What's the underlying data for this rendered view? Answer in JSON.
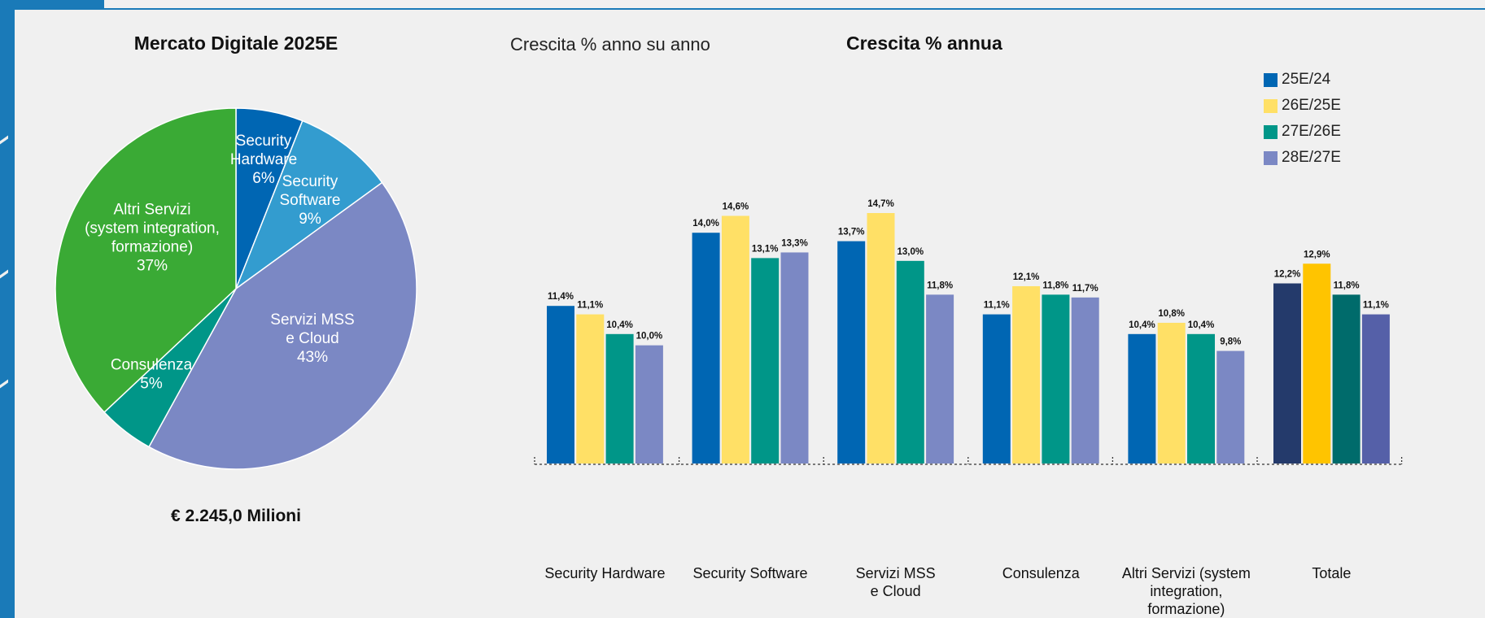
{
  "pie_title": "Mercato Digitale 2025E",
  "pie_total": "€  2.245,0 Milioni",
  "bar_subtitle": "Crescita % anno su anno",
  "bar_title": "Crescita % annua",
  "colors": {
    "frame": "#1a7ab8",
    "pie": [
      "#0066b3",
      "#339ccf",
      "#7b88c4",
      "#009688",
      "#3aaa35"
    ]
  },
  "chart_data": [
    {
      "type": "pie",
      "title": "Mercato Digitale 2025E",
      "total": "€  2.245,0 Milioni",
      "slices": [
        {
          "label": [
            "Security",
            "Hardware",
            "6%"
          ],
          "value": 6,
          "color": "#0066b3"
        },
        {
          "label": [
            "Security",
            "Software",
            "9%"
          ],
          "value": 9,
          "color": "#339ccf"
        },
        {
          "label": [
            "Servizi MSS",
            "e Cloud",
            "43%"
          ],
          "value": 43,
          "color": "#7b88c4"
        },
        {
          "label": [
            "Consulenza",
            "5%"
          ],
          "value": 5,
          "color": "#009688"
        },
        {
          "label": [
            "Altri Servizi",
            "(system integration,",
            "formazione)",
            "37%"
          ],
          "value": 37,
          "color": "#3aaa35"
        }
      ]
    },
    {
      "type": "bar",
      "title": "Crescita % annua",
      "subtitle": "Crescita % anno su anno",
      "categories": [
        [
          "Security Hardware"
        ],
        [
          "Security Software"
        ],
        [
          "Servizi MSS",
          "e Cloud"
        ],
        [
          "Consulenza"
        ],
        [
          "Altri Servizi (system",
          "integration, formazione)"
        ],
        [
          "Totale"
        ]
      ],
      "series": [
        {
          "name": "25E/24",
          "color": "#0066b3",
          "values": [
            11.4,
            14.0,
            13.7,
            11.1,
            10.4,
            12.2
          ],
          "labels": [
            "11,4%",
            "14,0%",
            "13,7%",
            "11,1%",
            "10,4%",
            "12,2%"
          ]
        },
        {
          "name": "26E/25E",
          "color": "#ffe066",
          "values": [
            11.1,
            14.6,
            14.7,
            12.1,
            10.8,
            12.9
          ],
          "labels": [
            "11,1%",
            "14,6%",
            "14,7%",
            "12,1%",
            "10,8%",
            "12,9%"
          ]
        },
        {
          "name": "27E/26E",
          "color": "#009688",
          "values": [
            10.4,
            13.1,
            13.0,
            11.8,
            10.4,
            11.8
          ],
          "labels": [
            "10,4%",
            "13,1%",
            "13,0%",
            "11,8%",
            "10,4%",
            "11,8%"
          ]
        },
        {
          "name": "28E/27E",
          "color": "#7b88c4",
          "values": [
            10.0,
            13.3,
            11.8,
            11.7,
            9.8,
            11.1
          ],
          "labels": [
            "10,0%",
            "13,3%",
            "11,8%",
            "11,7%",
            "9,8%",
            "11,1%"
          ]
        }
      ],
      "total_colors": [
        "#243a6b",
        "#ffc400",
        "#006b6b",
        "#5560a8"
      ],
      "ylim": [
        0,
        15
      ],
      "legend": "top-right"
    }
  ]
}
